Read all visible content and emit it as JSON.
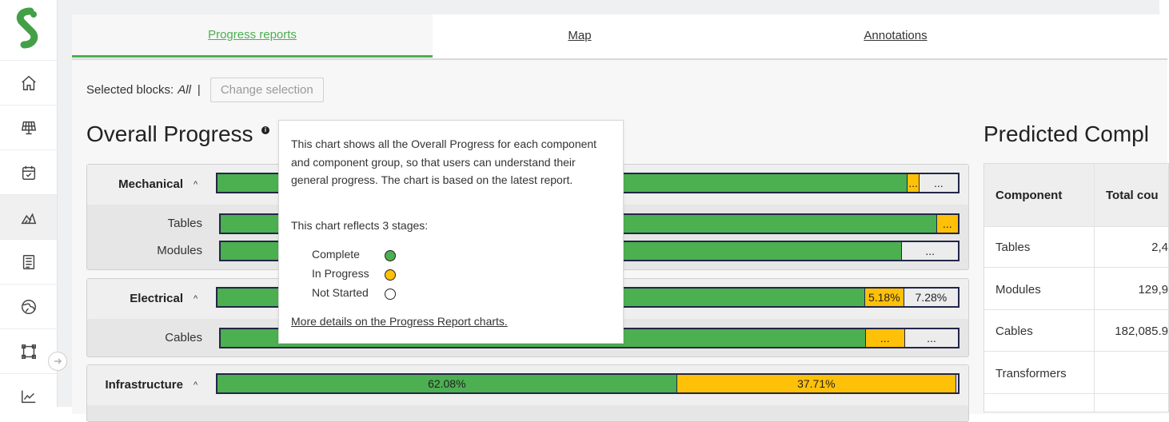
{
  "sidebar": {
    "items": [
      {
        "icon": "home-icon"
      },
      {
        "icon": "solar-panel-icon"
      },
      {
        "icon": "calendar-check-icon"
      },
      {
        "icon": "progress-chart-icon",
        "active": true
      },
      {
        "icon": "document-list-icon"
      },
      {
        "icon": "globe-icon"
      },
      {
        "icon": "frame-select-icon"
      },
      {
        "icon": "line-chart-icon"
      }
    ],
    "collapse_icon": "arrow-right-circle-icon"
  },
  "tabs": [
    {
      "label": "Progress reports",
      "active": true
    },
    {
      "label": "Map",
      "active": false
    },
    {
      "label": "Annotations",
      "active": false
    }
  ],
  "selection": {
    "label": "Selected blocks:",
    "value": "All",
    "separator": "|",
    "button": "Change selection"
  },
  "overall": {
    "title": "Overall Progress",
    "info_icon": "i",
    "colors": {
      "complete": "#4caf50",
      "in_progress": "#ffc107",
      "not_started": "#ececec"
    },
    "groups": [
      {
        "name": "Mechanical",
        "caret": "^",
        "bar": {
          "segments": [
            {
              "status": "complete",
              "fraction": 0.9333,
              "label": ""
            },
            {
              "status": "in_progress",
              "fraction": 0.0144,
              "label": "..."
            },
            {
              "status": "not_started",
              "fraction": 0.0523,
              "label": "..."
            }
          ]
        },
        "components": [
          {
            "name": "Tables",
            "bar": {
              "segments": [
                {
                  "status": "complete",
                  "fraction": 0.9713,
                  "label": ""
                },
                {
                  "status": "in_progress",
                  "fraction": 0.0287,
                  "label": "..."
                }
              ]
            }
          },
          {
            "name": "Modules",
            "bar": {
              "segments": [
                {
                  "status": "complete",
                  "fraction": 0.9244,
                  "label": ""
                },
                {
                  "status": "not_started",
                  "fraction": 0.0756,
                  "label": "..."
                }
              ]
            }
          }
        ]
      },
      {
        "name": "Electrical",
        "caret": "^",
        "bar": {
          "segments": [
            {
              "status": "complete",
              "fraction": 0.8754,
              "label": ""
            },
            {
              "status": "in_progress",
              "fraction": 0.0518,
              "label": "5.18%"
            },
            {
              "status": "not_started",
              "fraction": 0.0728,
              "label": "7.28%"
            }
          ]
        },
        "components": [
          {
            "name": "Cables",
            "bar": {
              "segments": [
                {
                  "status": "complete",
                  "fraction": 0.8756,
                  "label": ""
                },
                {
                  "status": "in_progress",
                  "fraction": 0.0526,
                  "label": "..."
                },
                {
                  "status": "not_started",
                  "fraction": 0.0718,
                  "label": "..."
                }
              ]
            }
          }
        ]
      },
      {
        "name": "Infrastructure",
        "caret": "^",
        "bar": {
          "segments": [
            {
              "status": "complete",
              "fraction": 0.6208,
              "label": "62.08%"
            },
            {
              "status": "in_progress",
              "fraction": 0.3771,
              "label": "37.71%"
            },
            {
              "status": "not_started",
              "fraction": 0.0021,
              "label": ""
            }
          ]
        },
        "components": []
      }
    ]
  },
  "tooltip": {
    "text": "This chart shows all the Overall Progress for each component and component group, so that users can understand their general progress. The chart is based on the latest report.",
    "stages_intro": "This chart reflects 3 stages:",
    "stages": [
      {
        "label": "Complete",
        "color": "#4caf50"
      },
      {
        "label": "In Progress",
        "color": "#ffc107"
      },
      {
        "label": "Not Started",
        "color": "#ffffff"
      }
    ],
    "link": "More details on the Progress Report charts."
  },
  "predicted": {
    "title": "Predicted Compl",
    "columns": [
      "Component",
      "Total cou"
    ],
    "rows": [
      {
        "component": "Tables",
        "total": "2,4"
      },
      {
        "component": "Modules",
        "total": "129,9"
      },
      {
        "component": "Cables",
        "total": "182,085.9"
      },
      {
        "component": "Transformers",
        "total": ""
      }
    ]
  }
}
